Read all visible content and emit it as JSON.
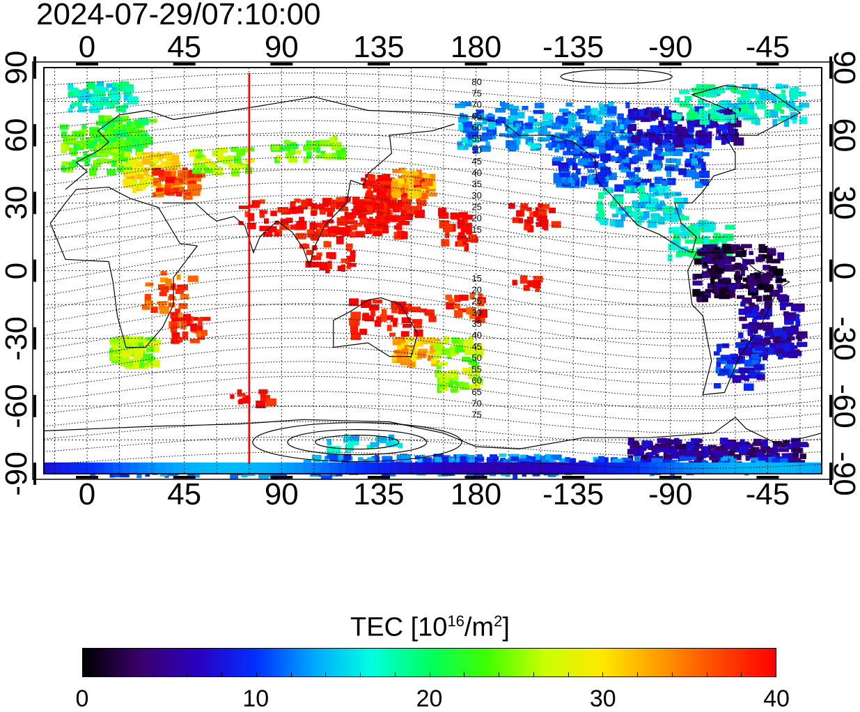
{
  "timestamp": "2024-07-29/07:10:00",
  "axes": {
    "top_ticks": [
      "0",
      "45",
      "90",
      "135",
      "180",
      "-135",
      "-90",
      "-45"
    ],
    "bottom_ticks": [
      "0",
      "45",
      "90",
      "135",
      "180",
      "-135",
      "-90",
      "-45"
    ],
    "left_ticks": [
      "90",
      "60",
      "30",
      "0",
      "-30",
      "-60",
      "-90"
    ],
    "right_ticks": [
      "90",
      "60",
      "30",
      "0",
      "-30",
      "-60",
      "-90"
    ],
    "lon_range": [
      -20,
      340
    ],
    "lat_range": [
      -90,
      90
    ]
  },
  "contours": {
    "north_labels": [
      "80",
      "75",
      "70",
      "65",
      "60",
      "55",
      "50",
      "45",
      "40",
      "35",
      "30",
      "25",
      "20",
      "15"
    ],
    "south_labels": [
      "15",
      "20",
      "25",
      "30",
      "35",
      "40",
      "45",
      "50",
      "55",
      "60",
      "65",
      "70",
      "75"
    ]
  },
  "meridian_marker": {
    "lon": 75,
    "color": "#ff0000"
  },
  "colorbar": {
    "title": "TEC  [10",
    "title_sup": "16",
    "title_mid": "/m",
    "title_sup2": "2",
    "title_end": "]",
    "ticks": [
      "0",
      "10",
      "20",
      "30",
      "40"
    ],
    "range": [
      0,
      40
    ],
    "colors": [
      "#000000",
      "#3a006a",
      "#2a00c0",
      "#0030ff",
      "#00a8ff",
      "#00ffe0",
      "#00ff60",
      "#40ff00",
      "#c8ff00",
      "#ffe800",
      "#ff9a00",
      "#ff4800",
      "#ff0000"
    ]
  }
}
